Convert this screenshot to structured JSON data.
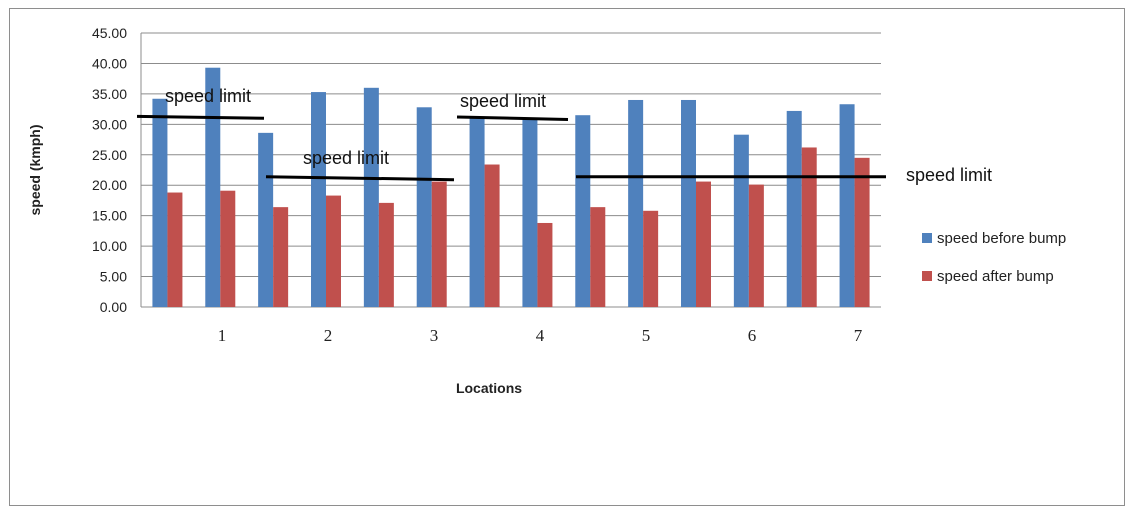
{
  "chart_data": {
    "type": "bar",
    "ylabel": "speed (kmph)",
    "xlabel": "Locations",
    "ylim": [
      0,
      45
    ],
    "y_ticks": [
      "0.00",
      "5.00",
      "10.00",
      "15.00",
      "20.00",
      "25.00",
      "30.00",
      "35.00",
      "40.00",
      "45.00"
    ],
    "x_tick_labels": [
      "1",
      "2",
      "3",
      "4",
      "5",
      "6",
      "7"
    ],
    "grid": true,
    "legend_position": "right",
    "series": [
      {
        "name": "speed before bump",
        "color": "#4f81bd",
        "values": [
          34.2,
          39.3,
          28.6,
          35.3,
          36.0,
          32.8,
          31.0,
          30.8,
          31.5,
          34.0,
          34.0,
          28.3,
          32.2,
          33.3
        ]
      },
      {
        "name": "speed after bump",
        "color": "#c0504d",
        "values": [
          18.8,
          19.1,
          16.4,
          18.3,
          17.1,
          20.6,
          23.4,
          13.8,
          16.4,
          15.8,
          20.6,
          20.1,
          26.2,
          24.5
        ]
      }
    ],
    "speed_limit_lines": [
      {
        "label": "speed limit",
        "from_group": 1,
        "to_group": 2,
        "y_start": 31.3,
        "y_end": 31.0
      },
      {
        "label": "speed limit",
        "from_group": 3,
        "to_group": 6,
        "y_start": 21.4,
        "y_end": 20.9
      },
      {
        "label": "speed limit",
        "from_group": 7,
        "to_group": 8,
        "y_start": 31.2,
        "y_end": 30.8
      },
      {
        "label": "speed limit",
        "from_group": 9,
        "to_group": 14,
        "y_start": 21.4,
        "y_end": 21.4
      }
    ]
  }
}
